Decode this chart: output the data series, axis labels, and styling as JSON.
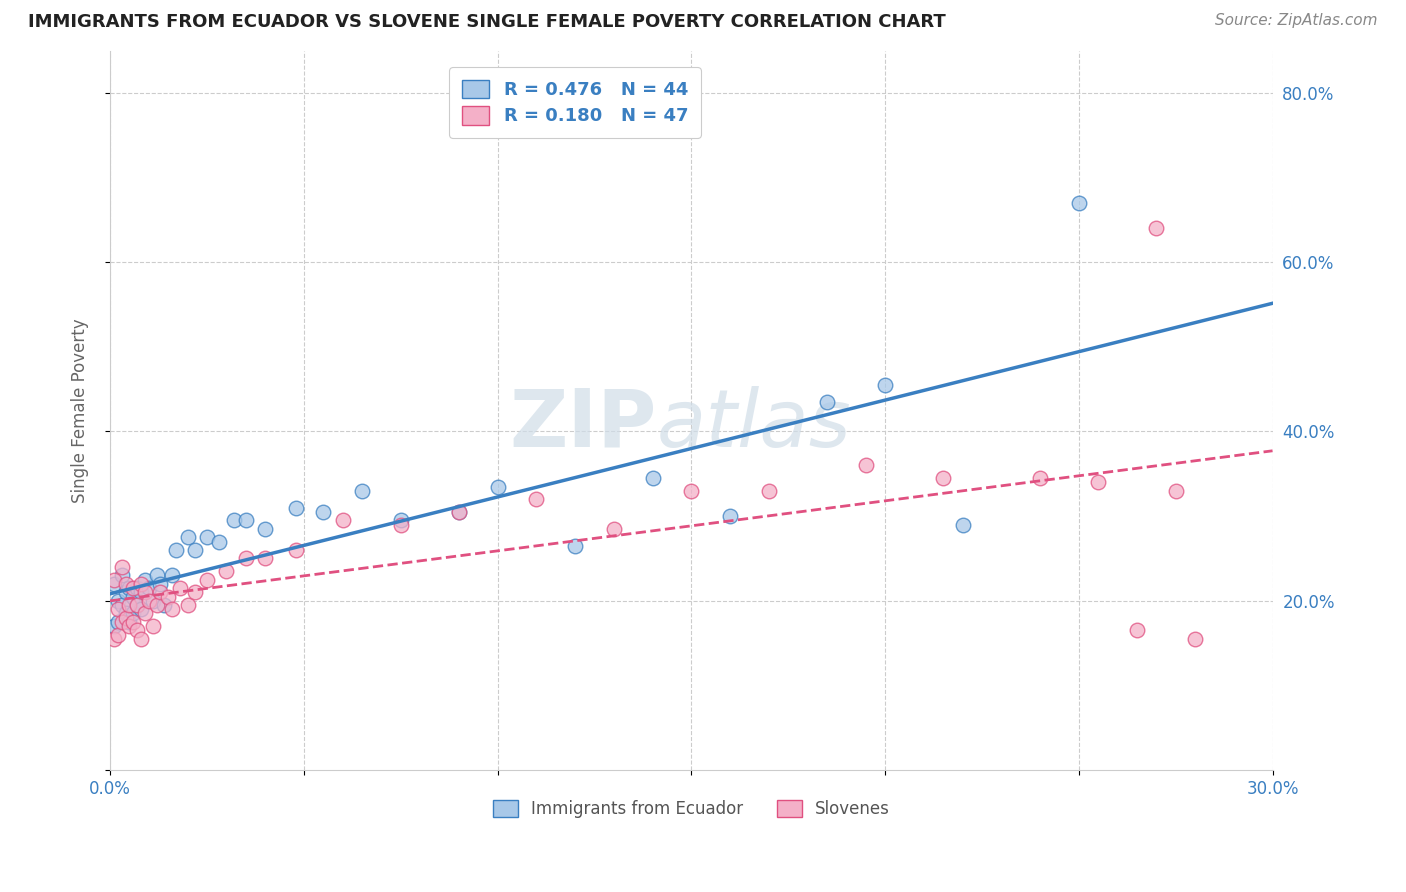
{
  "title": "IMMIGRANTS FROM ECUADOR VS SLOVENE SINGLE FEMALE POVERTY CORRELATION CHART",
  "source": "Source: ZipAtlas.com",
  "xlabel": "",
  "ylabel": "Single Female Poverty",
  "legend_label1": "Immigrants from Ecuador",
  "legend_label2": "Slovenes",
  "R1": 0.476,
  "N1": 44,
  "R2": 0.18,
  "N2": 47,
  "color1": "#a8c8e8",
  "color2": "#f4b0c8",
  "line1_color": "#3a7fc1",
  "line2_color": "#e05080",
  "background": "#ffffff",
  "grid_color": "#cccccc",
  "xlim": [
    0.0,
    0.3
  ],
  "ylim": [
    0.0,
    0.85
  ],
  "xticks": [
    0.0,
    0.05,
    0.1,
    0.15,
    0.2,
    0.25,
    0.3
  ],
  "xtick_labels": [
    "0.0%",
    "",
    "",
    "",
    "",
    "",
    "30.0%"
  ],
  "yticks": [
    0.0,
    0.2,
    0.4,
    0.6,
    0.8
  ],
  "ytick_labels": [
    "",
    "20.0%",
    "40.0%",
    "60.0%",
    "80.0%"
  ],
  "ecuador_x": [
    0.001,
    0.001,
    0.002,
    0.002,
    0.003,
    0.003,
    0.004,
    0.004,
    0.005,
    0.005,
    0.006,
    0.006,
    0.007,
    0.007,
    0.008,
    0.008,
    0.009,
    0.01,
    0.011,
    0.012,
    0.013,
    0.014,
    0.016,
    0.017,
    0.02,
    0.022,
    0.025,
    0.028,
    0.032,
    0.035,
    0.04,
    0.048,
    0.055,
    0.065,
    0.075,
    0.09,
    0.1,
    0.12,
    0.14,
    0.16,
    0.185,
    0.2,
    0.22,
    0.25
  ],
  "ecuador_y": [
    0.22,
    0.17,
    0.2,
    0.175,
    0.23,
    0.195,
    0.21,
    0.185,
    0.215,
    0.175,
    0.205,
    0.185,
    0.195,
    0.215,
    0.21,
    0.19,
    0.225,
    0.215,
    0.2,
    0.23,
    0.22,
    0.195,
    0.23,
    0.26,
    0.275,
    0.26,
    0.275,
    0.27,
    0.295,
    0.295,
    0.285,
    0.31,
    0.305,
    0.33,
    0.295,
    0.305,
    0.335,
    0.265,
    0.345,
    0.3,
    0.435,
    0.455,
    0.29,
    0.67
  ],
  "slovene_x": [
    0.001,
    0.001,
    0.002,
    0.002,
    0.003,
    0.003,
    0.004,
    0.004,
    0.005,
    0.005,
    0.006,
    0.006,
    0.007,
    0.007,
    0.008,
    0.008,
    0.009,
    0.009,
    0.01,
    0.011,
    0.012,
    0.013,
    0.015,
    0.016,
    0.018,
    0.02,
    0.022,
    0.025,
    0.03,
    0.035,
    0.04,
    0.048,
    0.06,
    0.075,
    0.09,
    0.11,
    0.13,
    0.15,
    0.17,
    0.195,
    0.215,
    0.24,
    0.255,
    0.265,
    0.27,
    0.275,
    0.28
  ],
  "slovene_y": [
    0.225,
    0.155,
    0.19,
    0.16,
    0.24,
    0.175,
    0.22,
    0.18,
    0.195,
    0.17,
    0.215,
    0.175,
    0.195,
    0.165,
    0.22,
    0.155,
    0.21,
    0.185,
    0.2,
    0.17,
    0.195,
    0.21,
    0.205,
    0.19,
    0.215,
    0.195,
    0.21,
    0.225,
    0.235,
    0.25,
    0.25,
    0.26,
    0.295,
    0.29,
    0.305,
    0.32,
    0.285,
    0.33,
    0.33,
    0.36,
    0.345,
    0.345,
    0.34,
    0.165,
    0.64,
    0.33,
    0.155
  ],
  "watermark_zip": "ZIP",
  "watermark_atlas": "atlas",
  "title_color": "#222222",
  "axis_label_color": "#666666",
  "tick_color": "#3a7fc1",
  "title_fontsize": 13,
  "source_fontsize": 11
}
